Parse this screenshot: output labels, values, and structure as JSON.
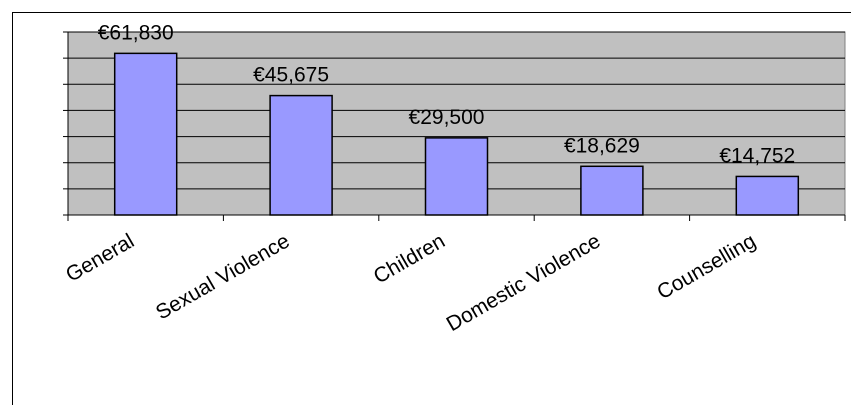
{
  "chart_data": {
    "type": "bar",
    "categories": [
      "General",
      "Sexual Violence",
      "Children",
      "Domestic Violence",
      "Counselling"
    ],
    "values": [
      61830,
      45675,
      29500,
      18629,
      14752
    ],
    "value_labels": [
      "€61,830",
      "€45,675",
      "€29,500",
      "€18,629",
      "€14,752"
    ],
    "color": "#9999ff",
    "ylim": [
      0,
      70000
    ],
    "yticks": [
      0,
      10000,
      20000,
      30000,
      40000,
      50000,
      60000,
      70000
    ],
    "grid": true
  }
}
